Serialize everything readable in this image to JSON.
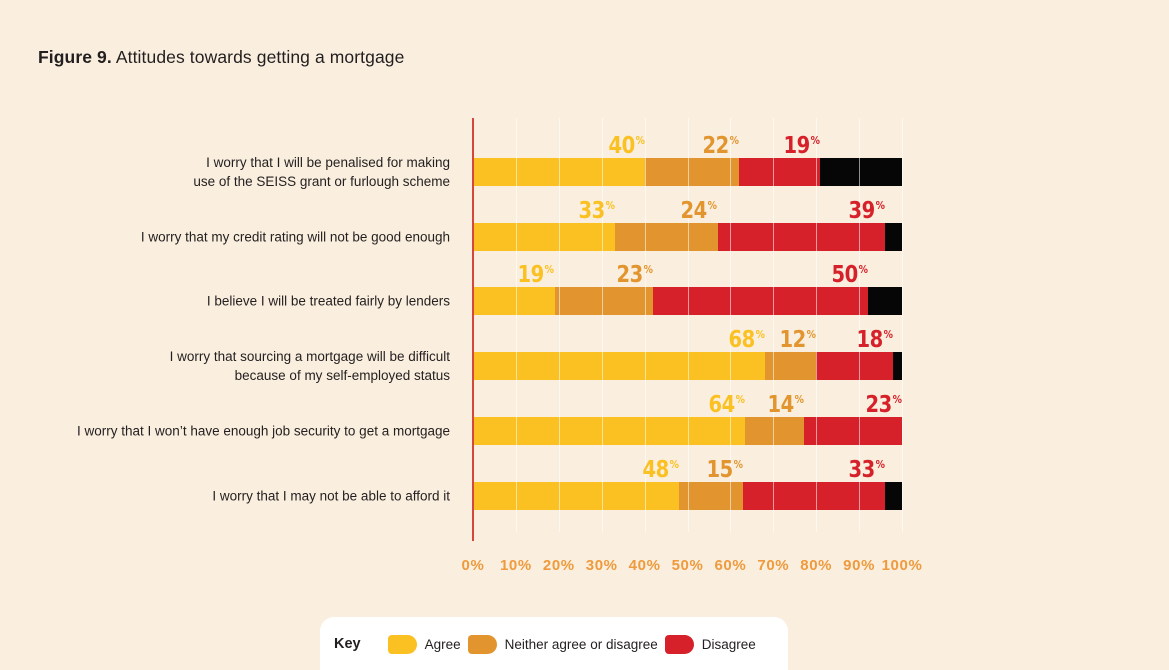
{
  "page": {
    "background": "#FAEFDE"
  },
  "title": {
    "label": "Figure 9.",
    "text": "Attitudes towards getting a mortgage"
  },
  "chart_data": {
    "type": "bar",
    "orientation": "horizontal",
    "stacked": true,
    "title": "Figure 9. Attitudes towards getting a mortgage",
    "categories": [
      "I worry that I will be penalised for making\nuse of the SEISS grant or furlough scheme",
      "I worry that my credit rating will not be good enough",
      "I believe I will be treated fairly by lenders",
      "I worry that sourcing a mortgage will be difficult\nbecause of my self-employed status",
      "I worry that I won’t have enough job security to get a mortgage",
      "I worry that I may not be able to afford it"
    ],
    "series": [
      {
        "name": "Agree",
        "color": "#FBC021",
        "labelled": true,
        "values": [
          40,
          33,
          19,
          68,
          64,
          48
        ]
      },
      {
        "name": "Neither agree or disagree",
        "color": "#E2952F",
        "labelled": true,
        "values": [
          22,
          24,
          23,
          12,
          14,
          15
        ]
      },
      {
        "name": "Disagree",
        "color": "#D6212B",
        "labelled": true,
        "values": [
          19,
          39,
          50,
          18,
          23,
          33
        ]
      },
      {
        "name": "",
        "color": "#060606",
        "labelled": false,
        "values": [
          19,
          4,
          8,
          2,
          0,
          4
        ]
      }
    ],
    "value_suffix": "%",
    "xlim": [
      0,
      100
    ],
    "x_ticks": [
      "0%",
      "10%",
      "20%",
      "30%",
      "40%",
      "50%",
      "60%",
      "70%",
      "80%",
      "90%",
      "100%"
    ],
    "grid": true,
    "legend_position": "bottom",
    "axis_color": "#D5473B",
    "tick_color": "#EE9A3D"
  },
  "key": {
    "title": "Key",
    "items": [
      {
        "label": "Agree",
        "color": "#FBC021"
      },
      {
        "label": "Neither agree or disagree",
        "color": "#E2952F"
      },
      {
        "label": "Disagree",
        "color": "#D6212B"
      }
    ]
  }
}
